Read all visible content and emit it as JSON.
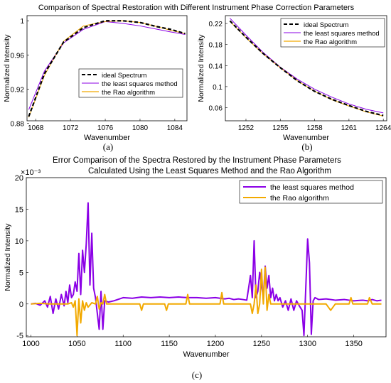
{
  "figure_title": "Comparison of Spectral Restoration with Different Instrument Phase Correction Parameters",
  "panel_labels": [
    "(a)",
    "(b)",
    "(c)"
  ],
  "colors": {
    "ideal": "#000000",
    "least_squares": "#8B00E6",
    "rao": "#F2A900"
  },
  "chart_data": [
    {
      "id": "a",
      "type": "line",
      "xlabel": "Wavenumber",
      "ylabel": "Normalized Intensity",
      "xlim": [
        1067,
        1085.4
      ],
      "ylim": [
        0.883,
        1.006
      ],
      "xticks": [
        1068,
        1072,
        1076,
        1080,
        1084
      ],
      "yticks": [
        0.88,
        0.92,
        0.96,
        1
      ],
      "ytick_labels": [
        "0.88",
        "0.92",
        "0.96",
        "1"
      ],
      "legend_position": "lower-right",
      "series": [
        {
          "name": "ideal Spectrum",
          "style": "dashed",
          "color_key": "ideal",
          "x": [
            1067.2,
            1069,
            1071.2,
            1073.5,
            1076,
            1078,
            1080,
            1082,
            1083.5,
            1085.2
          ],
          "y": [
            0.888,
            0.938,
            0.975,
            0.992,
            1.0,
            1.0,
            0.998,
            0.993,
            0.99,
            0.985
          ]
        },
        {
          "name": "the least squares method",
          "color_key": "least_squares",
          "x": [
            1067.2,
            1069,
            1071.2,
            1073.5,
            1076,
            1078,
            1080,
            1082,
            1083.5,
            1085.2
          ],
          "y": [
            0.896,
            0.941,
            0.974,
            0.99,
            0.999,
            0.997,
            0.994,
            0.99,
            0.987,
            0.984
          ]
        },
        {
          "name": "the Rao algorithm",
          "color_key": "rao",
          "x": [
            1067.2,
            1069,
            1071.2,
            1073.5,
            1076,
            1078,
            1080,
            1082,
            1083.5,
            1085.2
          ],
          "y": [
            0.887,
            0.936,
            0.976,
            0.994,
            0.999,
            1.0,
            0.998,
            0.993,
            0.989,
            0.985
          ]
        }
      ]
    },
    {
      "id": "b",
      "type": "line",
      "xlabel": "Wavenumber",
      "ylabel": "Normalized Intensity",
      "xlim": [
        1250.2,
        1264.3
      ],
      "ylim": [
        0.035,
        0.235
      ],
      "xticks": [
        1252,
        1255,
        1258,
        1261,
        1264
      ],
      "yticks": [
        0.06,
        0.1,
        0.14,
        0.18,
        0.22
      ],
      "ytick_labels": [
        "0.06",
        "0.1",
        "0.14",
        "0.18",
        "0.22"
      ],
      "legend_position": "top-right",
      "series": [
        {
          "name": "ideal Spectrum",
          "style": "dashed",
          "color_key": "ideal",
          "x": [
            1250.6,
            1252,
            1253.5,
            1255,
            1256.5,
            1258,
            1259.5,
            1261,
            1262.5,
            1264
          ],
          "y": [
            0.225,
            0.194,
            0.163,
            0.136,
            0.111,
            0.091,
            0.076,
            0.064,
            0.053,
            0.045
          ]
        },
        {
          "name": "the least squares method",
          "color_key": "least_squares",
          "x": [
            1250.6,
            1252,
            1253.5,
            1255,
            1256.5,
            1258,
            1259.5,
            1261,
            1262.5,
            1264
          ],
          "y": [
            0.23,
            0.198,
            0.165,
            0.137,
            0.114,
            0.095,
            0.08,
            0.067,
            0.057,
            0.05
          ]
        },
        {
          "name": "the Rao algorithm",
          "color_key": "rao",
          "x": [
            1250.6,
            1252,
            1253.5,
            1255,
            1256.5,
            1258,
            1259.5,
            1261,
            1262.5,
            1264
          ],
          "y": [
            0.224,
            0.193,
            0.162,
            0.136,
            0.111,
            0.091,
            0.075,
            0.063,
            0.052,
            0.044
          ]
        }
      ]
    },
    {
      "id": "c",
      "type": "line",
      "title_lines": [
        "Error Comparison of the Spectra Restored by the Instrument Phase Parameters",
        "Calculated Using the Least Squares Method and the Rao Algorithm"
      ],
      "scale_label": "×10⁻³",
      "xlabel": "Wavenumber",
      "ylabel": "Normalized Intensity",
      "xlim": [
        995,
        1385
      ],
      "ylim": [
        -5.2,
        20
      ],
      "xticks": [
        1000,
        1050,
        1100,
        1150,
        1200,
        1250,
        1300,
        1350
      ],
      "yticks": [
        -5,
        0,
        5,
        10,
        15,
        20
      ],
      "legend_position": "top-right",
      "series": [
        {
          "name": "the least squares method",
          "color_key": "least_squares",
          "x": [
            1000,
            1005,
            1010,
            1015,
            1018,
            1021,
            1024,
            1027,
            1030,
            1033,
            1036,
            1038,
            1040,
            1042,
            1044,
            1046,
            1048,
            1050,
            1052,
            1054,
            1056,
            1058,
            1060,
            1062,
            1064,
            1066,
            1068,
            1070,
            1072,
            1074,
            1076,
            1078,
            1080,
            1084,
            1090,
            1100,
            1110,
            1120,
            1130,
            1140,
            1150,
            1160,
            1170,
            1180,
            1190,
            1200,
            1210,
            1215,
            1220,
            1225,
            1230,
            1234,
            1236,
            1238,
            1240,
            1242,
            1244,
            1246,
            1248,
            1250,
            1252,
            1254,
            1256,
            1258,
            1260,
            1262,
            1264,
            1266,
            1268,
            1270,
            1273,
            1276,
            1279,
            1282,
            1285,
            1288,
            1291,
            1294,
            1296,
            1298,
            1300,
            1302,
            1304,
            1306,
            1308,
            1312,
            1320,
            1330,
            1340,
            1350,
            1360,
            1365,
            1370,
            1375,
            1380
          ],
          "y": [
            0,
            0.1,
            -0.2,
            0.5,
            -0.5,
            1.2,
            -1.5,
            0.8,
            -0.8,
            1.5,
            -0.3,
            2.0,
            0.2,
            3.0,
            1.0,
            1.5,
            3.5,
            2.0,
            8.0,
            1.5,
            8.5,
            5.0,
            9.5,
            16.0,
            3.0,
            11.2,
            2.5,
            1.0,
            -1.5,
            -4.0,
            2.0,
            -4.0,
            0.5,
            0.3,
            0.5,
            1.0,
            0.9,
            1.1,
            1.0,
            1.1,
            1.0,
            1.1,
            1.0,
            1.0,
            0.9,
            1.0,
            0.8,
            0.9,
            0.7,
            0.8,
            0.7,
            0.6,
            2.5,
            4.5,
            1.0,
            10.0,
            1.0,
            2.0,
            5.0,
            3.0,
            1.0,
            6.0,
            2.5,
            4.5,
            1.0,
            2.5,
            0.5,
            1.5,
            0.5,
            1.0,
            -0.5,
            0.5,
            -1.0,
            0.8,
            -1.0,
            0.5,
            -0.3,
            -1.0,
            -5.0,
            2.5,
            10.3,
            6.5,
            -4.8,
            0.5,
            1.0,
            0.7,
            0.8,
            0.6,
            0.7,
            0.5,
            0.6,
            0.5,
            0.7,
            0.5,
            0.6
          ]
        },
        {
          "name": "the Rao algorithm",
          "color_key": "rao",
          "x": [
            1000,
            1010,
            1020,
            1030,
            1040,
            1044,
            1046,
            1048,
            1050,
            1052,
            1054,
            1056,
            1058,
            1060,
            1062,
            1066,
            1070,
            1072,
            1074,
            1076,
            1078,
            1080,
            1082,
            1090,
            1100,
            1110,
            1118,
            1120,
            1122,
            1130,
            1140,
            1145,
            1147,
            1149,
            1160,
            1168,
            1170,
            1172,
            1180,
            1190,
            1200,
            1205,
            1207,
            1209,
            1220,
            1230,
            1238,
            1240,
            1242,
            1244,
            1246,
            1248,
            1250,
            1252,
            1254,
            1256,
            1258,
            1260,
            1262,
            1270,
            1280,
            1290,
            1300,
            1310,
            1315,
            1320,
            1325,
            1330,
            1340,
            1345,
            1347,
            1349,
            1355,
            1360,
            1365,
            1367,
            1370,
            1380
          ],
          "y": [
            0,
            0.1,
            0,
            0,
            0,
            0.2,
            -0.5,
            0.5,
            -5.0,
            0.8,
            -3.0,
            0.5,
            -1.0,
            0.2,
            -0.5,
            0.2,
            0,
            1.2,
            -0.8,
            0.2,
            0,
            1.5,
            0,
            0,
            0,
            0,
            0,
            -1.0,
            0,
            0,
            0,
            0,
            -1.0,
            0,
            0,
            0,
            1.5,
            0,
            0,
            0,
            0,
            0,
            1.8,
            0,
            0,
            0,
            0,
            -1.5,
            0,
            3.0,
            -1.5,
            0,
            5.5,
            0,
            5.8,
            -1.0,
            1.5,
            0,
            0,
            0,
            0,
            0,
            0,
            0,
            0,
            0,
            -1.0,
            0,
            0,
            0,
            1.0,
            0,
            0,
            0,
            0,
            1.0,
            0,
            0
          ]
        }
      ]
    }
  ]
}
